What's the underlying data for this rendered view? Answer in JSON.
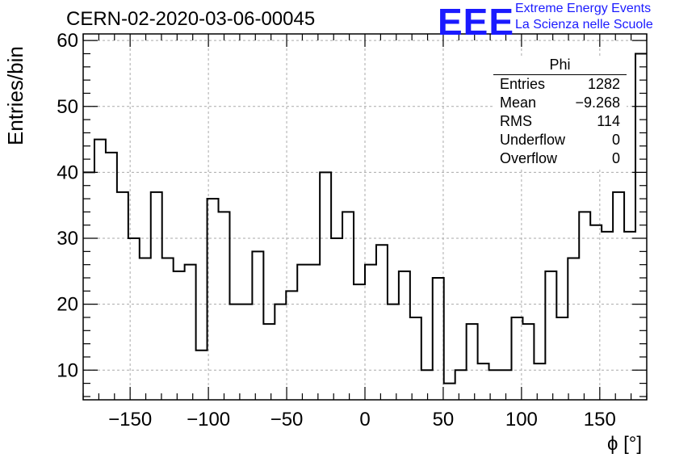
{
  "header": {
    "title": "CERN-02-2020-03-06-00045"
  },
  "logo": {
    "text": "EEE",
    "line1": "Extreme Energy Events",
    "line2": "La Scienza nelle Scuole",
    "color": "#1a1aff"
  },
  "stats": {
    "name": "Phi",
    "rows": [
      {
        "label": "Entries",
        "value": "1282"
      },
      {
        "label": "Mean",
        "value": "−9.268"
      },
      {
        "label": "RMS",
        "value": "114"
      },
      {
        "label": "Underflow",
        "value": "0"
      },
      {
        "label": "Overflow",
        "value": "0"
      }
    ]
  },
  "chart_data": {
    "type": "histogram",
    "xlabel": "ϕ [°]",
    "ylabel": "Entries/bin",
    "xlim": [
      -180,
      180
    ],
    "ylim": [
      5.5,
      61
    ],
    "grid": true,
    "bin_width": 7.2,
    "bin_low_edges": [
      -180,
      -172.8,
      -165.6,
      -158.4,
      -151.2,
      -144,
      -136.8,
      -129.6,
      -122.4,
      -115.2,
      -108,
      -100.8,
      -93.6,
      -86.4,
      -79.2,
      -72,
      -64.8,
      -57.6,
      -50.4,
      -43.2,
      -36,
      -28.8,
      -21.6,
      -14.4,
      -7.2,
      0,
      7.2,
      14.4,
      21.6,
      28.8,
      36,
      43.2,
      50.4,
      57.6,
      64.8,
      72,
      79.2,
      86.4,
      93.6,
      100.8,
      108,
      115.2,
      122.4,
      129.6,
      136.8,
      144,
      151.2,
      158.4,
      165.6,
      172.8
    ],
    "values": [
      40,
      45,
      43,
      37,
      30,
      27,
      37,
      27,
      25,
      26,
      13,
      36,
      34,
      20,
      20,
      28,
      17,
      20,
      22,
      26,
      26,
      40,
      30,
      34,
      23,
      26,
      29,
      20,
      25,
      18,
      10,
      24,
      8,
      10,
      17,
      11,
      10,
      10,
      18,
      17,
      11,
      25,
      18,
      27,
      34,
      32,
      31,
      37,
      31,
      58
    ],
    "xticks": [
      -150,
      -100,
      -50,
      0,
      50,
      100,
      150
    ],
    "xtick_labels": [
      "−150",
      "−100",
      "−50",
      "0",
      "50",
      "100",
      "150"
    ],
    "yticks": [
      10,
      20,
      30,
      40,
      50,
      60
    ],
    "ytick_labels": [
      "10",
      "20",
      "30",
      "40",
      "50",
      "60"
    ]
  }
}
